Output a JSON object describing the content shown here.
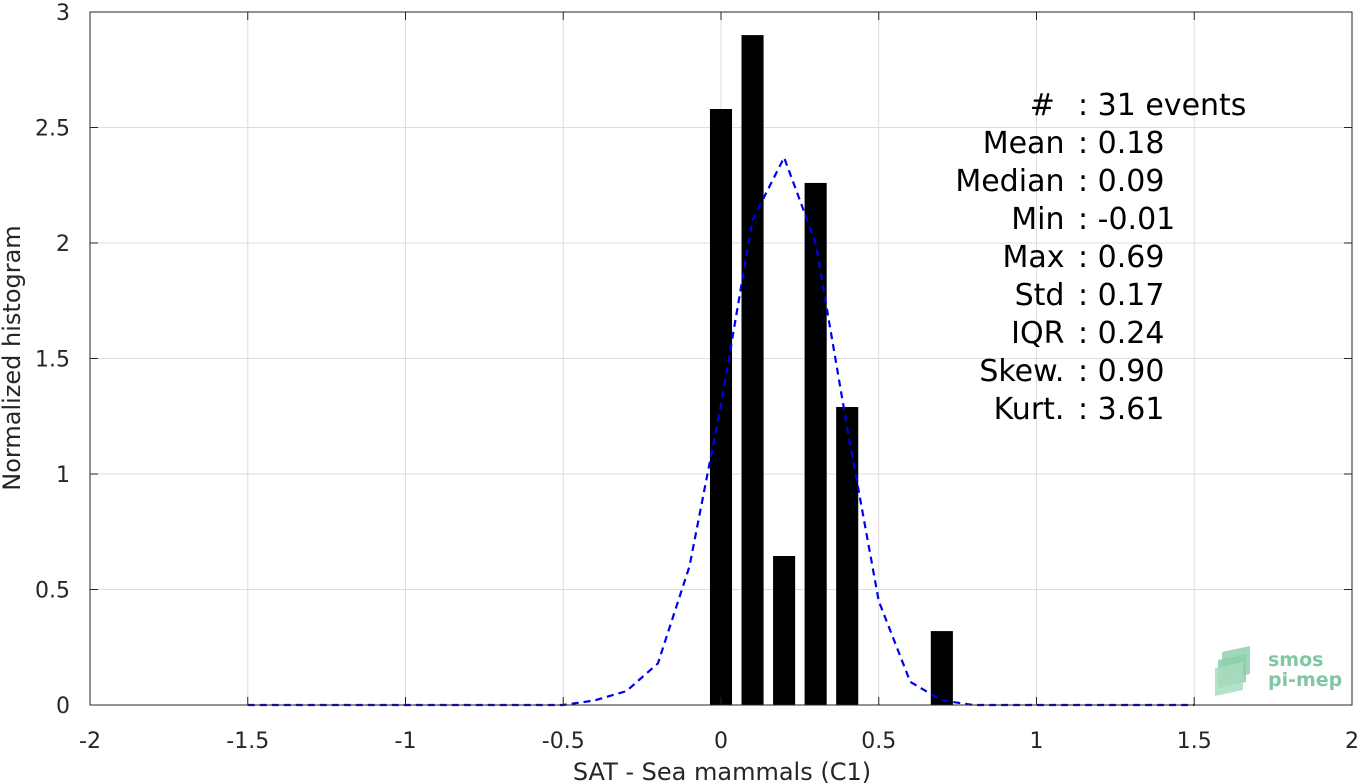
{
  "chart_data": {
    "type": "bar",
    "xlabel": "SAT - Sea mammals (C1)",
    "ylabel": "Normalized histogram",
    "xlim": [
      -2,
      2
    ],
    "ylim": [
      0,
      3
    ],
    "x_ticks": [
      "-2",
      "-1.5",
      "-1",
      "-0.5",
      "0",
      "0.5",
      "1",
      "1.5",
      "2"
    ],
    "y_ticks": [
      "0",
      "0.5",
      "1",
      "1.5",
      "2",
      "2.5",
      "3"
    ],
    "grid": true,
    "bars": {
      "centers": [
        0.0,
        0.1,
        0.2,
        0.3,
        0.4,
        0.7
      ],
      "values": [
        2.58,
        2.9,
        0.645,
        2.26,
        1.29,
        0.32
      ],
      "width": 0.07,
      "color": "#000000"
    },
    "fit_curve": {
      "style": "dashed",
      "color": "#0000ee",
      "x": [
        -1.5,
        -0.5,
        -0.4,
        -0.3,
        -0.2,
        -0.1,
        0.0,
        0.1,
        0.2,
        0.3,
        0.4,
        0.5,
        0.6,
        0.7,
        0.8,
        1.5
      ],
      "y": [
        0.0,
        0.0,
        0.02,
        0.06,
        0.18,
        0.6,
        1.3,
        2.1,
        2.37,
        2.0,
        1.2,
        0.45,
        0.1,
        0.02,
        0.0,
        0.0
      ]
    },
    "stats": [
      "#  : 31 events",
      "Mean : 0.18",
      "Median : 0.09",
      "Min : -0.01",
      "Max : 0.69",
      "Std : 0.17",
      "IQR : 0.24",
      "Skew. : 0.90",
      "Kurt. : 3.61"
    ]
  },
  "logo": {
    "line1": "smos",
    "line2": "pi-mep",
    "color": "#7fc8a3"
  }
}
